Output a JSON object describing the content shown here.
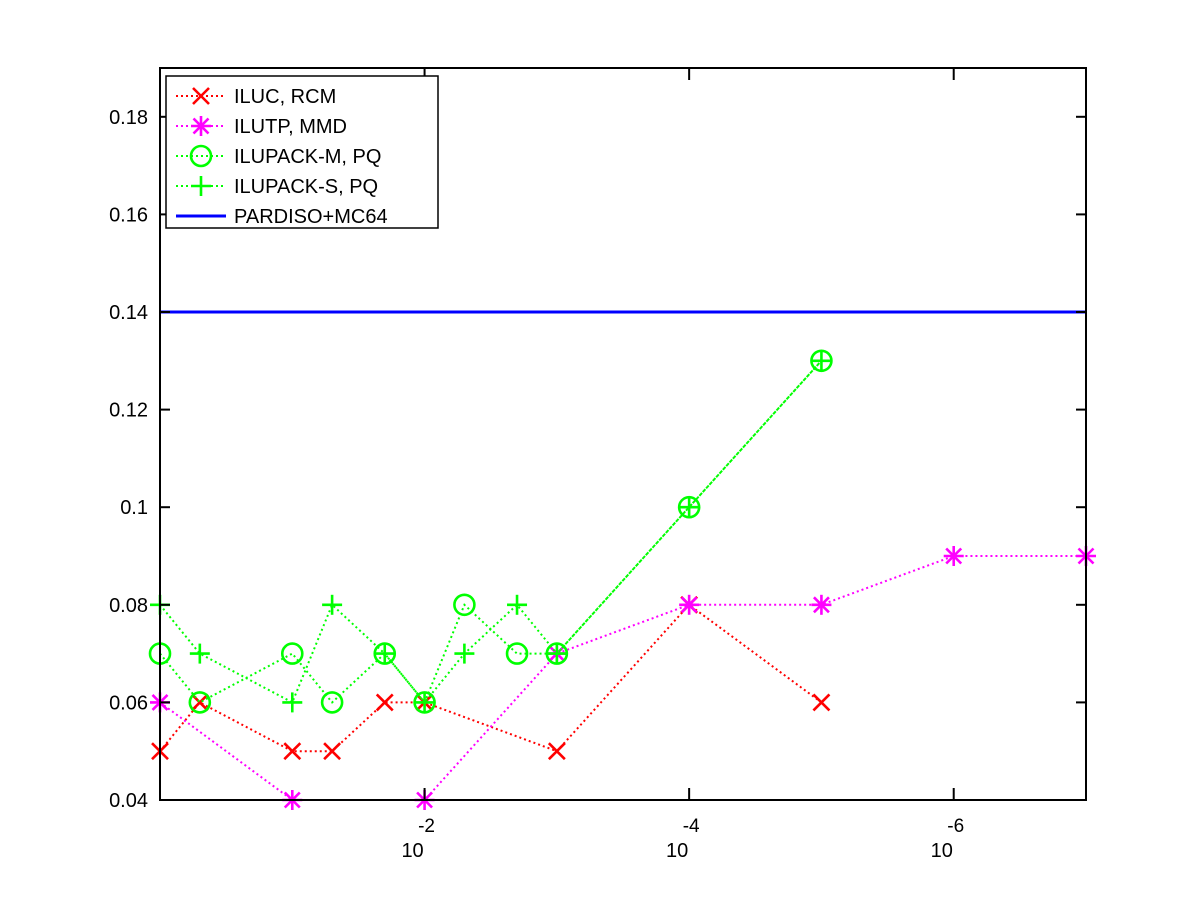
{
  "chart_data": {
    "type": "line",
    "xscale": "log",
    "x_reversed": true,
    "xlim": [
      1,
      1e-07
    ],
    "ylim": [
      0.04,
      0.19
    ],
    "xticks": [
      {
        "value": 0.01,
        "base": "10",
        "exp": "-2"
      },
      {
        "value": 0.0001,
        "base": "10",
        "exp": "-4"
      },
      {
        "value": 1e-06,
        "base": "10",
        "exp": "-6"
      }
    ],
    "yticks": [
      0.04,
      0.06,
      0.08,
      0.1,
      0.12,
      0.14,
      0.16,
      0.18
    ],
    "ytick_labels": [
      "0.04",
      "0.06",
      "0.08",
      "0.1",
      "0.12",
      "0.14",
      "0.16",
      "0.18"
    ],
    "legend_position": "top-left",
    "grid": false,
    "series": [
      {
        "name": "ILUC, RCM",
        "color": "#ff0000",
        "marker": "x",
        "linestyle": "dotted",
        "points": [
          {
            "x": 1,
            "y": 0.05
          },
          {
            "x": 0.5,
            "y": 0.06
          },
          {
            "x": 0.1,
            "y": 0.05
          },
          {
            "x": 0.05,
            "y": 0.05
          },
          {
            "x": 0.02,
            "y": 0.06
          },
          {
            "x": 0.01,
            "y": 0.06
          },
          {
            "x": 0.001,
            "y": 0.05
          },
          {
            "x": 0.0001,
            "y": 0.08
          },
          {
            "x": 1e-05,
            "y": 0.06
          }
        ]
      },
      {
        "name": "ILUTP, MMD",
        "color": "#ff00ff",
        "marker": "asterisk",
        "linestyle": "dotted",
        "points": [
          {
            "x": 1,
            "y": 0.06
          },
          {
            "x": 0.1,
            "y": 0.04
          },
          {
            "x": 0.01,
            "y": 0.04
          },
          {
            "x": 0.001,
            "y": 0.07
          },
          {
            "x": 0.0001,
            "y": 0.08
          },
          {
            "x": 1e-05,
            "y": 0.08
          },
          {
            "x": 1e-06,
            "y": 0.09
          },
          {
            "x": 1e-07,
            "y": 0.09
          }
        ]
      },
      {
        "name": "ILUPACK-M, PQ",
        "color": "#00ff00",
        "marker": "circle",
        "linestyle": "dotted",
        "points": [
          {
            "x": 1,
            "y": 0.07
          },
          {
            "x": 0.5,
            "y": 0.06
          },
          {
            "x": 0.1,
            "y": 0.07
          },
          {
            "x": 0.05,
            "y": 0.06
          },
          {
            "x": 0.02,
            "y": 0.07
          },
          {
            "x": 0.01,
            "y": 0.06
          },
          {
            "x": 0.005,
            "y": 0.08
          },
          {
            "x": 0.002,
            "y": 0.07
          },
          {
            "x": 0.001,
            "y": 0.07
          },
          {
            "x": 0.0001,
            "y": 0.1
          },
          {
            "x": 1e-05,
            "y": 0.13
          }
        ]
      },
      {
        "name": "ILUPACK-S, PQ",
        "color": "#00ff00",
        "marker": "plus",
        "linestyle": "dotted",
        "points": [
          {
            "x": 1,
            "y": 0.08
          },
          {
            "x": 0.5,
            "y": 0.07
          },
          {
            "x": 0.1,
            "y": 0.06
          },
          {
            "x": 0.05,
            "y": 0.08
          },
          {
            "x": 0.02,
            "y": 0.07
          },
          {
            "x": 0.01,
            "y": 0.06
          },
          {
            "x": 0.005,
            "y": 0.07
          },
          {
            "x": 0.002,
            "y": 0.08
          },
          {
            "x": 0.001,
            "y": 0.07
          },
          {
            "x": 0.0001,
            "y": 0.1
          },
          {
            "x": 1e-05,
            "y": 0.13
          }
        ]
      },
      {
        "name": "PARDISO+MC64",
        "color": "#0000ff",
        "marker": "none",
        "linestyle": "solid",
        "points": [
          {
            "x": 1,
            "y": 0.14
          },
          {
            "x": 1e-07,
            "y": 0.14
          }
        ]
      }
    ]
  }
}
